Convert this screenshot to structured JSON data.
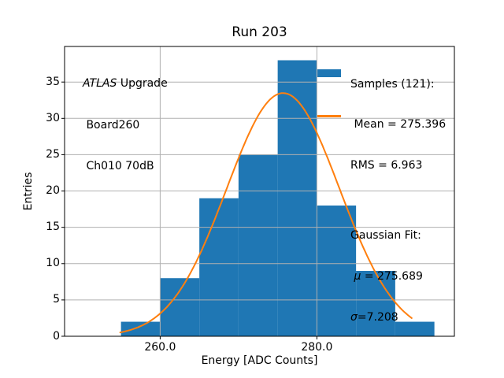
{
  "title": "Run 203",
  "annotation": {
    "line1_italic": "ATLAS",
    "line1_rest": " Upgrade",
    "line2": " Board260",
    "line3": " Ch010 70dB"
  },
  "legend": {
    "samples": {
      "title": "Samples (121):",
      "mean": " Mean = 275.396",
      "rms": "RMS = 6.963"
    },
    "fit": {
      "title": "Gaussian Fit:",
      "mu_prefix": " ",
      "mu_symbol": "μ",
      "mu_value": " = 275.689",
      "sigma_symbol": "σ",
      "sigma_value": "=7.208"
    }
  },
  "chart_data": {
    "type": "bar",
    "subtype": "histogram-with-gaussian-fit",
    "title": "Run 203",
    "xlabel": "Energy [ADC Counts]",
    "ylabel": "Entries",
    "bin_edges": [
      255,
      260,
      265,
      270,
      275,
      280,
      285,
      290,
      295
    ],
    "counts": [
      2,
      8,
      19,
      25,
      38,
      18,
      9,
      2
    ],
    "n_samples": 121,
    "mean": 275.396,
    "rms": 6.963,
    "fit": {
      "type": "gaussian",
      "mu": 275.689,
      "sigma": 7.208,
      "amplitude": 33.48,
      "x_range": [
        254.9,
        292.1
      ]
    },
    "xlim": [
      247.8,
      297.55
    ],
    "ylim": [
      0,
      39.9
    ],
    "xticks": [
      {
        "value": 260,
        "label": "260.0"
      },
      {
        "value": 280,
        "label": "280.0"
      }
    ],
    "yticks": [
      0,
      5,
      10,
      15,
      20,
      25,
      30,
      35
    ],
    "grid": true,
    "legend_position": "upper right",
    "colors": {
      "bar": "#1f77b4",
      "curve": "#ff7f0e",
      "grid": "#b0b0b0",
      "spine": "#000000",
      "background": "#ffffff"
    }
  }
}
